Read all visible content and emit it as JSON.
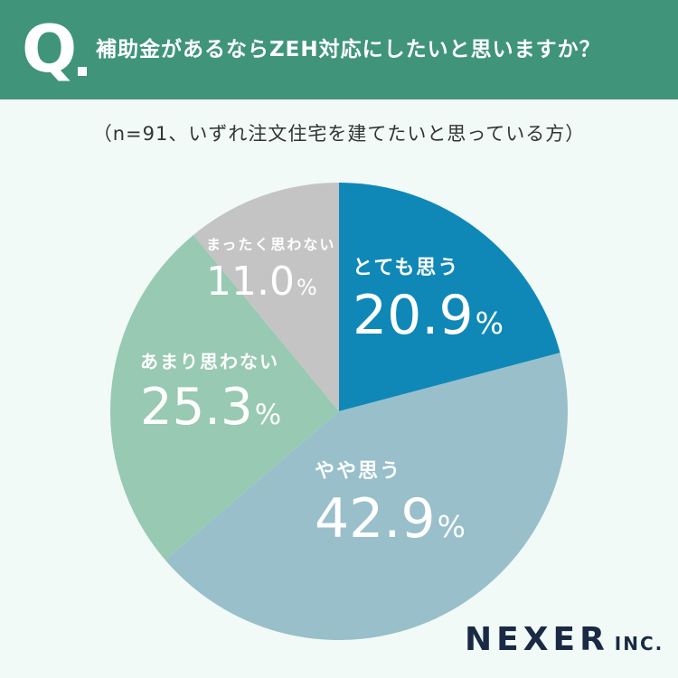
{
  "header": {
    "q_mark": "Q",
    "question": "補助金があるならZEH対応にしたいと思いますか？"
  },
  "subtitle": "（n=91、いずれ注文住宅を建てたいと思っている方）",
  "chart_data": {
    "type": "pie",
    "start_angle_deg": 0,
    "direction": "clockwise",
    "unit": "%",
    "slices": [
      {
        "label": "とても思う",
        "value": 20.9,
        "value_text": "20.9",
        "color": "#0f88b8",
        "text_color": "#ffffff"
      },
      {
        "label": "やや思う",
        "value": 42.9,
        "value_text": "42.9",
        "color": "#98bfca",
        "text_color": "#ffffff"
      },
      {
        "label": "あまり思わない",
        "value": 25.3,
        "value_text": "25.3",
        "color": "#98c9b2",
        "text_color": "#ffffff"
      },
      {
        "label": "まったく思わない",
        "value": 11.0,
        "value_text": "11.0",
        "color": "#c4c4c4",
        "text_color": "#ffffff"
      }
    ]
  },
  "logo": {
    "main": "NEXER",
    "sub": "INC."
  }
}
